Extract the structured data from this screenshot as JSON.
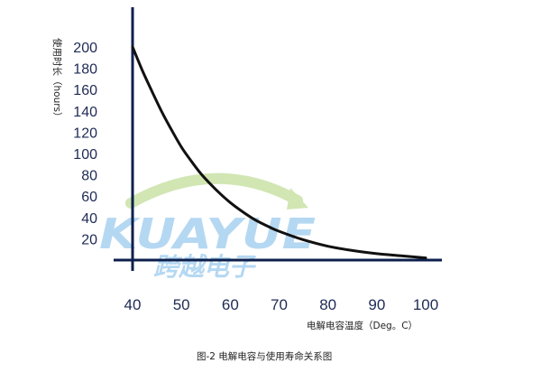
{
  "chart_data": {
    "type": "line",
    "caption": "图-2 电解电容与使用寿命关系图",
    "xlabel": "电解电容温度（Deg。C）",
    "ylabel_lines": [
      "使用时长（hours）"
    ],
    "xlim": [
      40,
      100
    ],
    "ylim": [
      0,
      200
    ],
    "xticks": [
      "40",
      "50",
      "60",
      "70",
      "80",
      "90",
      "100"
    ],
    "yticks": [
      "200",
      "180",
      "160",
      "140",
      "120",
      "100",
      "80",
      "60",
      "40",
      "20"
    ],
    "series": [
      {
        "x": [
          40,
          42,
          44,
          46,
          48,
          50,
          52,
          54,
          56,
          58,
          60,
          62,
          65,
          68,
          70,
          75,
          80,
          85,
          90,
          95,
          100
        ],
        "y": [
          200,
          178,
          158,
          139,
          122,
          106,
          93,
          81,
          71,
          62,
          54,
          47,
          38,
          31,
          27,
          19,
          13,
          9,
          6,
          4,
          2
        ]
      }
    ],
    "grid": false,
    "legend": "none",
    "colors": {
      "line": "#111111",
      "axis": "#0c1f4d",
      "ticks": "#1e2a55"
    }
  },
  "watermark": {
    "latin": "KUAYUE",
    "chinese": "跨越电子",
    "colors": {
      "text": "#9bcbee",
      "arc": "#b9d98f"
    }
  }
}
